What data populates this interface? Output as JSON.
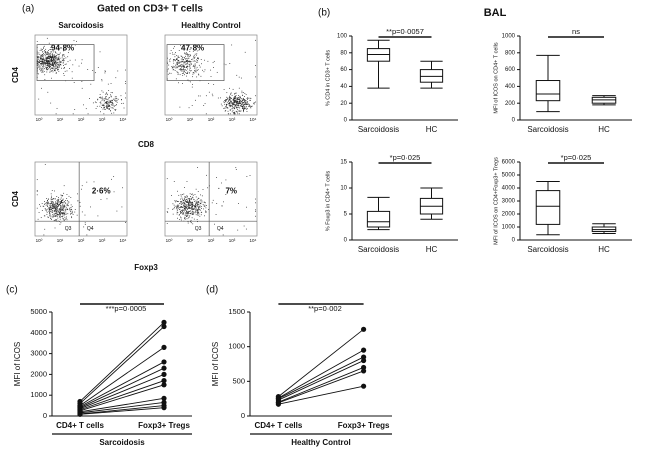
{
  "figure": {
    "panel_labels": [
      "(a)",
      "(b)",
      "(c)",
      "(d)"
    ],
    "title_a": "Gated on CD3+ T cells",
    "title_b": "BAL",
    "log_ticks": [
      "10⁰",
      "10¹",
      "10²",
      "10³",
      "10⁴"
    ],
    "flow_rows": [
      {
        "y_label": "CD4",
        "x_label": "CD8",
        "panels": [
          {
            "title": "Sarcoidosis",
            "gate_label": "94·8%"
          },
          {
            "title": "Healthy Control",
            "gate_label": "47·8%"
          }
        ]
      },
      {
        "y_label": "CD4",
        "x_label": "Foxp3",
        "panels": [
          {
            "gate_label": "2·6%",
            "quadrants": [
              "Q3",
              "Q4"
            ]
          },
          {
            "gate_label": "7%",
            "quadrants": [
              "Q3",
              "Q4"
            ]
          }
        ]
      }
    ]
  },
  "chart_data": [
    {
      "type": "box",
      "y_label": "% CD4 in CD3+ T cells",
      "categories": [
        "Sarcoidosis",
        "HC"
      ],
      "boxes": [
        {
          "min": 38,
          "q1": 70,
          "median": 78,
          "q3": 85,
          "max": 95
        },
        {
          "min": 38,
          "q1": 45,
          "median": 52,
          "q3": 60,
          "max": 70
        }
      ],
      "ylim": [
        0,
        100
      ],
      "yticks": [
        0,
        20,
        40,
        60,
        80,
        100
      ],
      "annotation": "**p=0·0057"
    },
    {
      "type": "box",
      "y_label": "MFI of ICOS on CD4+ T cells",
      "categories": [
        "Sarcoidosis",
        "HC"
      ],
      "boxes": [
        {
          "min": 100,
          "q1": 230,
          "median": 310,
          "q3": 470,
          "max": 770
        },
        {
          "min": 180,
          "q1": 200,
          "median": 240,
          "q3": 270,
          "max": 290
        }
      ],
      "ylim": [
        0,
        1000
      ],
      "yticks": [
        0,
        200,
        400,
        600,
        800,
        1000
      ],
      "annotation": "ns"
    },
    {
      "type": "box",
      "y_label": "% Foxp3 in CD4+ T cells",
      "categories": [
        "Sarcoidosis",
        "HC"
      ],
      "boxes": [
        {
          "min": 2,
          "q1": 2.5,
          "median": 3.5,
          "q3": 5.5,
          "max": 8.2
        },
        {
          "min": 4,
          "q1": 5,
          "median": 6.5,
          "q3": 8,
          "max": 10
        }
      ],
      "ylim": [
        0,
        15
      ],
      "yticks": [
        0,
        5,
        10,
        15
      ],
      "annotation": "*p=0·025"
    },
    {
      "type": "box",
      "y_label": "MFI of ICOS on CD4+Foxp3+ Tregs",
      "categories": [
        "Sarcoidosis",
        "HC"
      ],
      "boxes": [
        {
          "min": 400,
          "q1": 1200,
          "median": 2600,
          "q3": 3800,
          "max": 4500
        },
        {
          "min": 500,
          "q1": 650,
          "median": 800,
          "q3": 1000,
          "max": 1250
        }
      ],
      "ylim": [
        0,
        6000
      ],
      "yticks": [
        0,
        1000,
        2000,
        3000,
        4000,
        5000,
        6000
      ],
      "annotation": "*p=0·025"
    },
    {
      "type": "paired",
      "y_label": "MFI of ICOS",
      "categories": [
        "CD4+ T cells",
        "Foxp3+ Tregs"
      ],
      "group": "Sarcoidosis",
      "series": [
        {
          "values": [
            700,
            4500
          ]
        },
        {
          "values": [
            600,
            4300
          ]
        },
        {
          "values": [
            500,
            3300
          ]
        },
        {
          "values": [
            450,
            2600
          ]
        },
        {
          "values": [
            400,
            2300
          ]
        },
        {
          "values": [
            350,
            2000
          ]
        },
        {
          "values": [
            300,
            1700
          ]
        },
        {
          "values": [
            250,
            1500
          ]
        },
        {
          "values": [
            200,
            850
          ]
        },
        {
          "values": [
            150,
            650
          ]
        },
        {
          "values": [
            100,
            500
          ]
        },
        {
          "values": [
            80,
            400
          ]
        }
      ],
      "ylim": [
        0,
        5000
      ],
      "yticks": [
        0,
        1000,
        2000,
        3000,
        4000,
        5000
      ],
      "annotation": "***p=0·0005"
    },
    {
      "type": "paired",
      "y_label": "MFI of ICOS",
      "categories": [
        "CD4+ T cells",
        "Foxp3+ Tregs"
      ],
      "group": "Healthy Control",
      "series": [
        {
          "values": [
            280,
            1250
          ]
        },
        {
          "values": [
            260,
            950
          ]
        },
        {
          "values": [
            250,
            850
          ]
        },
        {
          "values": [
            230,
            800
          ]
        },
        {
          "values": [
            200,
            700
          ]
        },
        {
          "values": [
            190,
            650
          ]
        },
        {
          "values": [
            170,
            430
          ]
        }
      ],
      "ylim": [
        0,
        1500
      ],
      "yticks": [
        0,
        500,
        1000,
        1500
      ],
      "annotation": "**p=0·002"
    }
  ]
}
